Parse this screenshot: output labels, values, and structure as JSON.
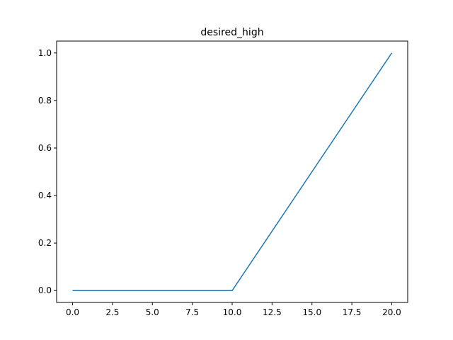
{
  "chart_data": {
    "type": "line",
    "title": "desired_high",
    "xlabel": "",
    "ylabel": "",
    "xlim": [
      -1,
      21
    ],
    "ylim": [
      -0.05,
      1.05
    ],
    "xticks": [
      0.0,
      2.5,
      5.0,
      7.5,
      10.0,
      12.5,
      15.0,
      17.5,
      20.0
    ],
    "xtick_labels": [
      "0.0",
      "2.5",
      "5.0",
      "7.5",
      "10.0",
      "12.5",
      "15.0",
      "17.5",
      "20.0"
    ],
    "yticks": [
      0.0,
      0.2,
      0.4,
      0.6,
      0.8,
      1.0
    ],
    "ytick_labels": [
      "0.0",
      "0.2",
      "0.4",
      "0.6",
      "0.8",
      "1.0"
    ],
    "grid": false,
    "series": [
      {
        "color": "#1f77b4",
        "x": [
          0,
          10,
          20
        ],
        "y": [
          0,
          0,
          1
        ]
      }
    ]
  }
}
